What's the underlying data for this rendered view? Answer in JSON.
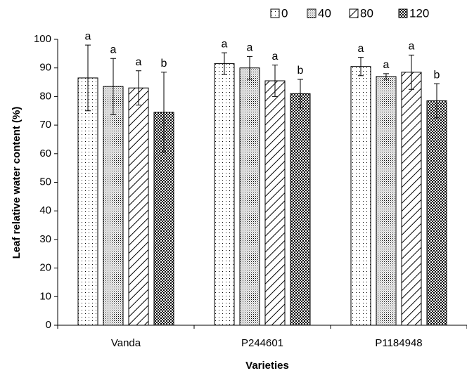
{
  "chart_data": {
    "type": "bar",
    "x_label": "Varieties",
    "y_label": "Leaf relative water content (%)",
    "categories": [
      "Vanda",
      "P244601",
      "P1184948"
    ],
    "ylim": [
      0,
      100
    ],
    "yticks": [
      0,
      10,
      20,
      30,
      40,
      50,
      60,
      70,
      80,
      90,
      100
    ],
    "series": [
      {
        "name": "0",
        "pattern": "dots-sparse",
        "values": [
          86.5,
          91.5,
          90.5
        ],
        "errors": [
          11.5,
          3.8,
          3.2
        ],
        "labels": [
          "a",
          "a",
          "a"
        ]
      },
      {
        "name": "40",
        "pattern": "dots-dense",
        "values": [
          83.5,
          90,
          87
        ],
        "errors": [
          9.8,
          4,
          1
        ],
        "labels": [
          "a",
          "a",
          "a"
        ]
      },
      {
        "name": "80",
        "pattern": "diagonal",
        "values": [
          83,
          85.5,
          88.5
        ],
        "errors": [
          6,
          5.5,
          6
        ],
        "labels": [
          "a",
          "a",
          "a"
        ]
      },
      {
        "name": "120",
        "pattern": "checker",
        "values": [
          74.5,
          81,
          78.5
        ],
        "errors": [
          14,
          5,
          6
        ],
        "labels": [
          "b",
          "b",
          "b"
        ]
      }
    ]
  }
}
